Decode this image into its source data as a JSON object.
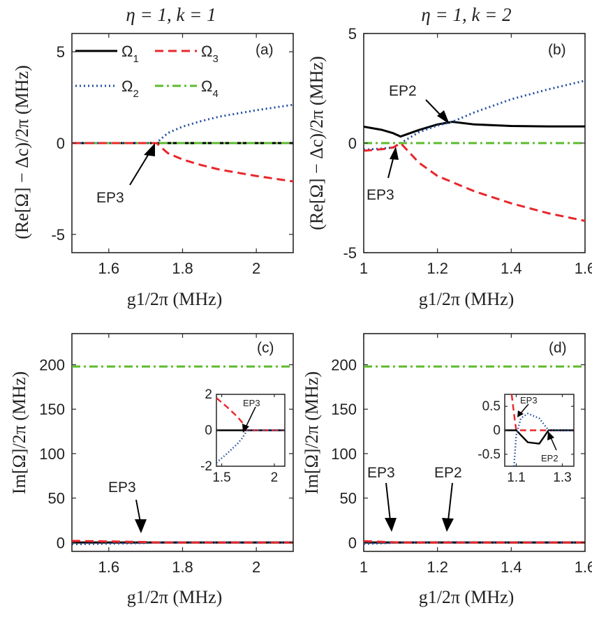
{
  "chart_data": [
    {
      "id": "a",
      "type": "line",
      "title": "η = 1, k = 1",
      "panel_label": "(a)",
      "xlabel": "g1/2π (MHz)",
      "ylabel": "(Re[Ω] − Δc)/2π (MHz)",
      "xlim": [
        1.5,
        2.1
      ],
      "ylim": [
        -6,
        6
      ],
      "xticks": [
        1.6,
        1.8,
        2.0
      ],
      "xtick_labels": [
        "1.6",
        "1.8",
        "2"
      ],
      "yticks": [
        -5,
        0,
        5
      ],
      "ytick_labels": [
        "-5",
        "0",
        "5"
      ],
      "legend": {
        "placement": "top",
        "entries": [
          {
            "name": "Ω1",
            "base": "Ω",
            "sub": "1",
            "color": "#000000",
            "style": "solid"
          },
          {
            "name": "Ω3",
            "base": "Ω",
            "sub": "3",
            "color": "#e8262b",
            "style": "dashed"
          },
          {
            "name": "Ω2",
            "base": "Ω",
            "sub": "2",
            "color": "#1f4e9e",
            "style": "dotted"
          },
          {
            "name": "Ω4",
            "base": "Ω",
            "sub": "4",
            "color": "#5bbb2e",
            "style": "dashdot"
          }
        ]
      },
      "series": [
        {
          "name": "Ω1",
          "color": "#000000",
          "style": "solid",
          "x": [
            1.5,
            1.6,
            1.7,
            1.8,
            1.9,
            2.0,
            2.1
          ],
          "y": [
            0,
            0,
            0,
            0,
            0,
            0,
            0
          ]
        },
        {
          "name": "Ω4",
          "color": "#5bbb2e",
          "style": "dashdot",
          "x": [
            1.5,
            1.6,
            1.7,
            1.8,
            1.9,
            2.0,
            2.1
          ],
          "y": [
            0,
            0,
            0,
            0,
            0,
            0,
            0
          ]
        },
        {
          "name": "Ω2",
          "color": "#1f4e9e",
          "style": "dotted",
          "x": [
            1.5,
            1.6,
            1.73,
            1.74,
            1.76,
            1.8,
            1.85,
            1.9,
            2.0,
            2.1
          ],
          "y": [
            0,
            0,
            0,
            0.2,
            0.55,
            0.9,
            1.2,
            1.45,
            1.8,
            2.1
          ]
        },
        {
          "name": "Ω3",
          "color": "#e8262b",
          "style": "dashed",
          "x": [
            1.5,
            1.6,
            1.73,
            1.74,
            1.76,
            1.8,
            1.85,
            1.9,
            2.0,
            2.1
          ],
          "y": [
            0,
            0,
            0,
            -0.2,
            -0.55,
            -0.9,
            -1.2,
            -1.45,
            -1.8,
            -2.1
          ]
        }
      ],
      "annotations": [
        {
          "text": "EP3",
          "x": 1.73,
          "y": 0
        }
      ]
    },
    {
      "id": "b",
      "type": "line",
      "title": "η = 1, k = 2",
      "panel_label": "(b)",
      "xlabel": "g1/2π (MHz)",
      "ylabel": "(Re[Ω] − Δc)/2π (MHz)",
      "xlim": [
        1.0,
        1.6
      ],
      "ylim": [
        -5,
        5
      ],
      "xticks": [
        1.0,
        1.2,
        1.4,
        1.6
      ],
      "xtick_labels": [
        "1",
        "1.2",
        "1.4",
        "1.6"
      ],
      "yticks": [
        -5,
        0,
        5
      ],
      "ytick_labels": [
        "-5",
        "0",
        "5"
      ],
      "series": [
        {
          "name": "Ω1",
          "color": "#000000",
          "style": "solid",
          "x": [
            1.0,
            1.05,
            1.08,
            1.1,
            1.15,
            1.2,
            1.24,
            1.3,
            1.4,
            1.5,
            1.6
          ],
          "y": [
            0.75,
            0.6,
            0.45,
            0.3,
            0.6,
            0.85,
            0.97,
            0.85,
            0.78,
            0.76,
            0.76
          ]
        },
        {
          "name": "Ω2",
          "color": "#1f4e9e",
          "style": "dotted",
          "x": [
            1.0,
            1.05,
            1.08,
            1.1,
            1.15,
            1.2,
            1.24,
            1.3,
            1.4,
            1.5,
            1.6
          ],
          "y": [
            -0.3,
            -0.25,
            -0.2,
            0.0,
            0.5,
            0.8,
            0.97,
            1.4,
            2.0,
            2.45,
            2.85
          ]
        },
        {
          "name": "Ω3",
          "color": "#e8262b",
          "style": "dashed",
          "x": [
            1.0,
            1.05,
            1.08,
            1.1,
            1.15,
            1.2,
            1.3,
            1.4,
            1.5,
            1.6
          ],
          "y": [
            -0.35,
            -0.28,
            -0.2,
            0.0,
            -0.9,
            -1.5,
            -2.2,
            -2.75,
            -3.2,
            -3.55
          ]
        },
        {
          "name": "Ω4",
          "color": "#5bbb2e",
          "style": "dashdot",
          "x": [
            1.0,
            1.2,
            1.4,
            1.6
          ],
          "y": [
            0,
            0,
            0,
            0
          ]
        }
      ],
      "annotations": [
        {
          "text": "EP2",
          "x": 1.24,
          "y": 0.97
        },
        {
          "text": "EP3",
          "x": 1.1,
          "y": 0
        }
      ]
    },
    {
      "id": "c",
      "type": "line",
      "panel_label": "(c)",
      "xlabel": "g1/2π (MHz)",
      "ylabel": "Im[Ω]/2π (MHz)",
      "xlim": [
        1.5,
        2.1
      ],
      "ylim": [
        -10,
        235
      ],
      "xticks": [
        1.6,
        1.8,
        2.0
      ],
      "xtick_labels": [
        "1.6",
        "1.8",
        "2"
      ],
      "yticks": [
        0,
        50,
        100,
        150,
        200
      ],
      "ytick_labels": [
        "0",
        "50",
        "100",
        "150",
        "200"
      ],
      "series": [
        {
          "name": "Ω4",
          "color": "#5bbb2e",
          "style": "dashdot",
          "x": [
            1.5,
            2.1
          ],
          "y": [
            198,
            198
          ]
        },
        {
          "name": "Ω1",
          "color": "#000000",
          "style": "solid",
          "x": [
            1.5,
            2.1
          ],
          "y": [
            0,
            0
          ]
        },
        {
          "name": "Ω2",
          "color": "#1f4e9e",
          "style": "dotted",
          "x": [
            1.5,
            1.6,
            1.7,
            1.73,
            2.1
          ],
          "y": [
            -1.8,
            -1.2,
            -0.5,
            0,
            0
          ]
        },
        {
          "name": "Ω3",
          "color": "#e8262b",
          "style": "dashed",
          "x": [
            1.5,
            1.6,
            1.7,
            1.73,
            2.1
          ],
          "y": [
            1.8,
            1.2,
            0.5,
            0,
            0
          ]
        }
      ],
      "annotations": [
        {
          "text": "EP3",
          "x": 1.72,
          "y": 0
        }
      ],
      "inset": {
        "xlim": [
          1.45,
          2.1
        ],
        "ylim": [
          -2,
          2
        ],
        "xticks": [
          1.5,
          2.0
        ],
        "xtick_labels": [
          "1.5",
          "2"
        ],
        "yticks": [
          -2,
          0,
          2
        ],
        "ytick_labels": [
          "-2",
          "0",
          "2"
        ],
        "series": [
          {
            "name": "Ω1",
            "color": "#000000",
            "style": "solid",
            "x": [
              1.45,
              2.1
            ],
            "y": [
              0,
              0
            ]
          },
          {
            "name": "Ω3",
            "color": "#e8262b",
            "style": "dashed",
            "x": [
              1.45,
              1.55,
              1.65,
              1.7,
              1.74,
              2.1
            ],
            "y": [
              1.8,
              1.3,
              0.75,
              0.4,
              0,
              0
            ]
          },
          {
            "name": "Ω2",
            "color": "#1f4e9e",
            "style": "dotted",
            "x": [
              1.45,
              1.55,
              1.65,
              1.7,
              1.74,
              2.1
            ],
            "y": [
              -1.8,
              -1.3,
              -0.75,
              -0.4,
              0,
              0
            ]
          }
        ],
        "annotations": [
          {
            "text": "EP3",
            "x": 1.74,
            "y": 0
          }
        ]
      }
    },
    {
      "id": "d",
      "type": "line",
      "panel_label": "(d)",
      "xlabel": "g1/2π (MHz)",
      "ylabel": "Im[Ω]/2π (MHz)",
      "xlim": [
        1.0,
        1.6
      ],
      "ylim": [
        -10,
        235
      ],
      "xticks": [
        1.0,
        1.2,
        1.4,
        1.6
      ],
      "xtick_labels": [
        "1",
        "1.2",
        "1.4",
        "1.6"
      ],
      "yticks": [
        0,
        50,
        100,
        150,
        200
      ],
      "ytick_labels": [
        "0",
        "50",
        "100",
        "150",
        "200"
      ],
      "series": [
        {
          "name": "Ω4",
          "color": "#5bbb2e",
          "style": "dashdot",
          "x": [
            1.0,
            1.6
          ],
          "y": [
            198,
            198
          ]
        },
        {
          "name": "Ω1",
          "color": "#000000",
          "style": "solid",
          "x": [
            1.0,
            1.6
          ],
          "y": [
            0,
            0
          ]
        },
        {
          "name": "Ω2",
          "color": "#1f4e9e",
          "style": "dotted",
          "x": [
            1.0,
            1.1,
            1.2,
            1.6
          ],
          "y": [
            -1.5,
            0,
            0.3,
            0
          ]
        },
        {
          "name": "Ω3",
          "color": "#e8262b",
          "style": "dashed",
          "x": [
            1.0,
            1.1,
            1.25,
            1.6
          ],
          "y": [
            1.5,
            0,
            0,
            0
          ]
        }
      ],
      "annotations": [
        {
          "text": "EP3",
          "x": 1.08,
          "y": 0
        },
        {
          "text": "EP2",
          "x": 1.24,
          "y": 0
        }
      ],
      "inset": {
        "xlim": [
          1.05,
          1.35
        ],
        "ylim": [
          -0.75,
          0.75
        ],
        "xticks": [
          1.1,
          1.3
        ],
        "xtick_labels": [
          "1.1",
          "1.3"
        ],
        "yticks": [
          -0.5,
          0,
          0.5
        ],
        "ytick_labels": [
          "-0.5",
          "0",
          "0.5"
        ],
        "series": [
          {
            "name": "Ω3",
            "color": "#e8262b",
            "style": "dashed",
            "x": [
              1.08,
              1.09,
              1.1,
              1.35
            ],
            "y": [
              0.75,
              0.35,
              0,
              0
            ]
          },
          {
            "name": "Ω1",
            "color": "#000000",
            "style": "solid",
            "x": [
              1.05,
              1.1,
              1.15,
              1.2,
              1.24,
              1.35
            ],
            "y": [
              0,
              0,
              -0.25,
              -0.28,
              0,
              0
            ]
          },
          {
            "name": "Ω2",
            "color": "#1f4e9e",
            "style": "dotted",
            "x": [
              1.09,
              1.1,
              1.12,
              1.15,
              1.2,
              1.24,
              1.35
            ],
            "y": [
              -0.75,
              -0.1,
              0.25,
              0.35,
              0.25,
              0,
              0
            ]
          }
        ],
        "annotations": [
          {
            "text": "EP3",
            "x": 1.14,
            "y": 0.3
          },
          {
            "text": "EP2",
            "x": 1.24,
            "y": 0
          }
        ]
      }
    }
  ]
}
